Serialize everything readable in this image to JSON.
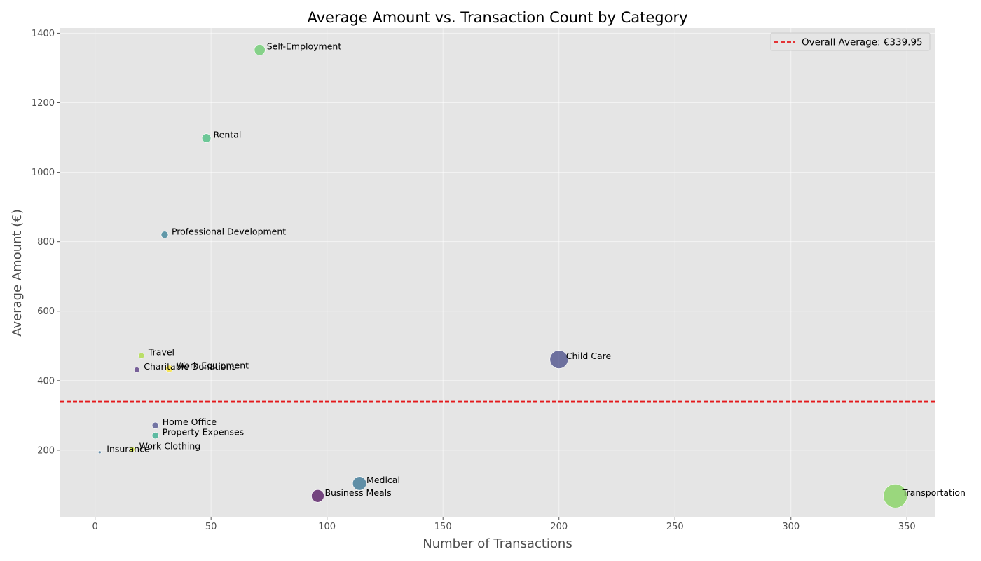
{
  "chart_data": {
    "type": "scatter",
    "title": "Average Amount vs. Transaction Count by Category",
    "xlabel": "Number of Transactions",
    "ylabel": "Average Amount (€)",
    "xlim": [
      -15,
      362
    ],
    "ylim": [
      8,
      1415
    ],
    "xticks": [
      0,
      50,
      100,
      150,
      200,
      250,
      300,
      350
    ],
    "yticks": [
      200,
      400,
      600,
      800,
      1000,
      1200,
      1400
    ],
    "grid": true,
    "legend_position": "top-right",
    "reference_line": {
      "label": "Overall Average: €339.95",
      "value": 339.95,
      "color": "#e41a1c",
      "style": "dashed"
    },
    "points": [
      {
        "label": "Self-Employment",
        "x": 71,
        "y": 1352,
        "size": 71,
        "color": "#5ec962"
      },
      {
        "label": "Rental",
        "x": 48,
        "y": 1098,
        "size": 48,
        "color": "#3aba76"
      },
      {
        "label": "Professional Development",
        "x": 30,
        "y": 820,
        "size": 30,
        "color": "#2a788e"
      },
      {
        "label": "Travel",
        "x": 20,
        "y": 472,
        "size": 20,
        "color": "#a8db34"
      },
      {
        "label": "Charitable Donations",
        "x": 18,
        "y": 431,
        "size": 18,
        "color": "#482878"
      },
      {
        "label": "Work Equipment",
        "x": 32,
        "y": 434,
        "size": 32,
        "color": "#fde725"
      },
      {
        "label": "Child Care",
        "x": 200,
        "y": 461,
        "size": 200,
        "color": "#3b3f80"
      },
      {
        "label": "Home Office",
        "x": 26,
        "y": 271,
        "size": 26,
        "color": "#414487"
      },
      {
        "label": "Property Expenses",
        "x": 26,
        "y": 242,
        "size": 26,
        "color": "#22a884"
      },
      {
        "label": "Work Clothing",
        "x": 16,
        "y": 202,
        "size": 16,
        "color": "#c8e020"
      },
      {
        "label": "Insurance",
        "x": 2,
        "y": 194,
        "size": 2,
        "color": "#31688e"
      },
      {
        "label": "Medical",
        "x": 114,
        "y": 104,
        "size": 114,
        "color": "#26698c"
      },
      {
        "label": "Business Meals",
        "x": 96,
        "y": 68,
        "size": 96,
        "color": "#440154"
      },
      {
        "label": "Transportation",
        "x": 345,
        "y": 68,
        "size": 345,
        "color": "#7ad151"
      }
    ]
  }
}
